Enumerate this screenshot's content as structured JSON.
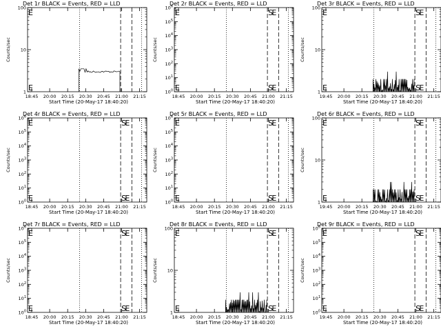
{
  "figure": {
    "background": "#ffffff",
    "foreground": "#000000",
    "line_colors": {
      "events": "#000000",
      "lld": "#ff0000"
    }
  },
  "chart_data": [
    {
      "type": "line",
      "title": "Det 1r BLACK = Events, RED = LLD",
      "xlabel": "Start Time (20-May-17 18:40:20)",
      "ylabel": "Counts/sec",
      "x_ticks": [
        "18:45",
        "20:00",
        "20:15",
        "20:30",
        "20:45",
        "21:00",
        "21:15"
      ],
      "y_scale": "log",
      "ylim": [
        1,
        100
      ],
      "y_ticks": [
        "1",
        "10",
        "100"
      ],
      "lines": {
        "dotted": [
          "19:50",
          "21:13"
        ],
        "dashed_S": "20:45",
        "dashed_E": "21:00"
      },
      "markers": {
        "S": false,
        "E": false
      },
      "series": [
        {
          "type": "line",
          "x_range": [
            "19:49",
            "20:44"
          ],
          "level": 3,
          "spikes": [
            3.5
          ]
        }
      ]
    },
    {
      "type": "line",
      "title": "Det 2r BLACK = Events, RED = LLD",
      "xlabel": "Start Time (20-May-17 18:40:20)",
      "ylabel": "Counts/sec",
      "x_ticks": [
        "18:45",
        "20:00",
        "20:15",
        "20:30",
        "20:45",
        "21:00",
        "21:15"
      ],
      "y_scale": "log",
      "ylim": [
        1,
        1000000
      ],
      "y_ticks": [
        "10^0",
        "10^1",
        "10^2",
        "10^3",
        "10^4",
        "10^5",
        "10^6"
      ],
      "lines": {
        "dotted": [
          "19:50",
          "21:13"
        ],
        "dashed_S": "20:45",
        "dashed_E": "21:00"
      },
      "markers": {
        "S": true,
        "E": true
      },
      "series": []
    },
    {
      "type": "line",
      "title": "Det 3r BLACK = Events, RED = LLD",
      "xlabel": "Start Time (20-May-17 18:40:20)",
      "ylabel": "Counts/sec",
      "x_ticks": [
        "19:45",
        "20:00",
        "20:15",
        "20:30",
        "20:45",
        "21:00",
        "21:15"
      ],
      "y_scale": "log",
      "ylim": [
        1,
        100
      ],
      "y_ticks": [
        "1",
        "10",
        "100"
      ],
      "lines": {
        "dotted": [
          "19:50",
          "21:13"
        ],
        "dashed_S": "20:45",
        "dashed_E": "21:00"
      },
      "markers": {
        "S": true,
        "E": true
      },
      "series": [
        {
          "type": "bars",
          "x_range": [
            "19:49",
            "20:44"
          ],
          "level": 2,
          "spikes": [
            3
          ]
        }
      ]
    },
    {
      "type": "line",
      "title": "Det 4r BLACK = Events, RED = LLD",
      "xlabel": "Start Time (20-May-17 18:40:20)",
      "ylabel": "Counts/sec",
      "x_ticks": [
        "18:45",
        "20:00",
        "20:15",
        "20:30",
        "20:45",
        "21:00",
        "21:15"
      ],
      "y_scale": "log",
      "ylim": [
        1,
        1000000
      ],
      "y_ticks": [
        "10^0",
        "10^1",
        "10^2",
        "10^3",
        "10^4",
        "10^5",
        "10^6"
      ],
      "lines": {
        "dotted": [
          "19:50",
          "21:13"
        ],
        "dashed_S": "20:45",
        "dashed_E": "21:00"
      },
      "markers": {
        "S": true,
        "E": true
      },
      "series": []
    },
    {
      "type": "line",
      "title": "Det 5r BLACK = Events, RED = LLD",
      "xlabel": "Start Time (20-May-17 18:40:20)",
      "ylabel": "Counts/sec",
      "x_ticks": [
        "18:45",
        "20:00",
        "20:15",
        "20:30",
        "20:45",
        "21:00",
        "21:15"
      ],
      "y_scale": "log",
      "ylim": [
        1,
        1000000
      ],
      "y_ticks": [
        "10^0",
        "10^1",
        "10^2",
        "10^3",
        "10^4",
        "10^5",
        "10^6"
      ],
      "lines": {
        "dotted": [
          "19:50",
          "21:13"
        ],
        "dashed_S": "20:45",
        "dashed_E": "21:00"
      },
      "markers": {
        "S": true,
        "E": true
      },
      "series": []
    },
    {
      "type": "line",
      "title": "Det 6r BLACK = Events, RED = LLD",
      "xlabel": "Start Time (20-May-17 18:40:20)",
      "ylabel": "Counts/sec",
      "x_ticks": [
        "19:45",
        "20:00",
        "20:15",
        "20:30",
        "20:45",
        "21:00",
        "21:15"
      ],
      "y_scale": "log",
      "ylim": [
        1,
        100
      ],
      "y_ticks": [
        "1",
        "10",
        "100"
      ],
      "lines": {
        "dotted": [
          "19:50",
          "21:13"
        ],
        "dashed_S": "20:45",
        "dashed_E": "21:00"
      },
      "markers": {
        "S": true,
        "E": true
      },
      "series": [
        {
          "type": "bars",
          "x_range": [
            "19:49",
            "20:44"
          ],
          "level": 2,
          "spikes": [
            3
          ]
        }
      ]
    },
    {
      "type": "line",
      "title": "Det 7r BLACK = Events, RED = LLD",
      "xlabel": "Start Time (20-May-17 18:40:20)",
      "ylabel": "Counts/sec",
      "x_ticks": [
        "18:45",
        "20:00",
        "20:15",
        "20:30",
        "20:45",
        "21:00",
        "21:15"
      ],
      "y_scale": "log",
      "ylim": [
        1,
        1000000
      ],
      "y_ticks": [
        "10^0",
        "10^1",
        "10^2",
        "10^3",
        "10^4",
        "10^5",
        "10^6"
      ],
      "lines": {
        "dotted": [
          "19:50",
          "21:13"
        ],
        "dashed_S": "20:45",
        "dashed_E": "21:00"
      },
      "markers": {
        "S": true,
        "E": true
      },
      "series": []
    },
    {
      "type": "line",
      "title": "Det 8r BLACK = Events, RED = LLD",
      "xlabel": "Start Time (20-May-17 18:40:20)",
      "ylabel": "Counts/sec",
      "x_ticks": [
        "18:45",
        "20:00",
        "20:15",
        "20:30",
        "20:45",
        "21:00",
        "21:15"
      ],
      "y_scale": "log",
      "ylim": [
        1,
        100
      ],
      "y_ticks": [
        "1",
        "10",
        "100"
      ],
      "lines": {
        "dotted": [
          "19:50",
          "21:13"
        ],
        "dashed_S": "20:45",
        "dashed_E": "21:00"
      },
      "markers": {
        "S": true,
        "E": true
      },
      "series": [
        {
          "type": "bars",
          "x_range": [
            "19:49",
            "20:44"
          ],
          "level": 2,
          "spikes": [
            3
          ]
        }
      ]
    },
    {
      "type": "line",
      "title": "Det 9r BLACK = Events, RED = LLD",
      "xlabel": "Start Time (20-May-17 18:40:20)",
      "ylabel": "Counts/sec",
      "x_ticks": [
        "19:45",
        "20:00",
        "20:15",
        "20:30",
        "20:45",
        "21:00",
        "21:15"
      ],
      "y_scale": "log",
      "ylim": [
        1,
        1000000
      ],
      "y_ticks": [
        "10^0",
        "10^1",
        "10^2",
        "10^3",
        "10^4",
        "10^5",
        "10^6"
      ],
      "lines": {
        "dotted": [
          "19:50",
          "21:13"
        ],
        "dashed_S": "20:45",
        "dashed_E": "21:00"
      },
      "markers": {
        "S": true,
        "E": true
      },
      "series": []
    }
  ]
}
